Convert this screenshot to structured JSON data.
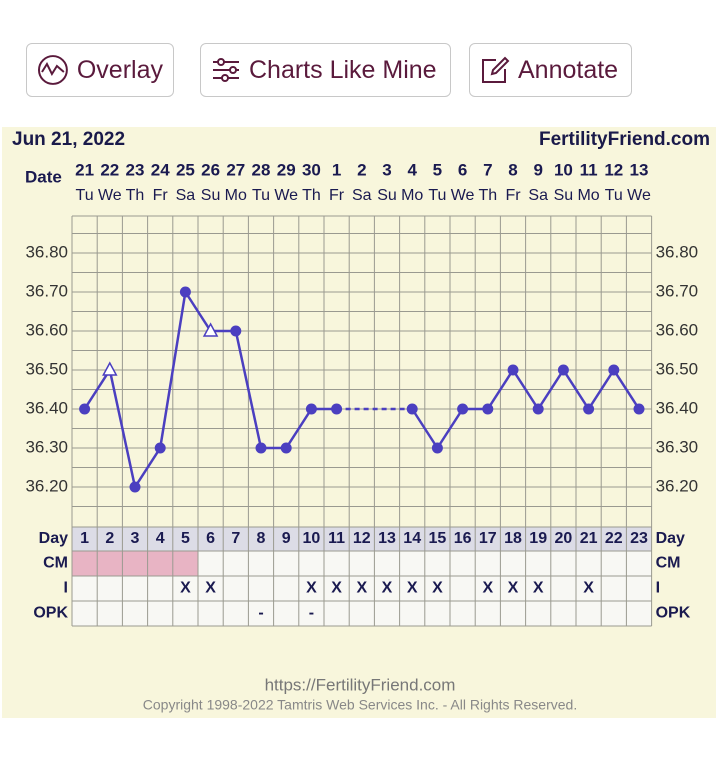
{
  "buttons": [
    "Overlay",
    "Charts Like Mine",
    "Annotate"
  ],
  "header": {
    "date": "Jun 21, 2022",
    "site": "FertilityFriend.com",
    "date_label": "Date"
  },
  "chart_data": {
    "type": "line",
    "categories": [
      "21",
      "22",
      "23",
      "24",
      "25",
      "26",
      "27",
      "28",
      "29",
      "30",
      "1",
      "2",
      "3",
      "4",
      "5",
      "6",
      "7",
      "8",
      "9",
      "10",
      "11",
      "12",
      "13"
    ],
    "weekdays": [
      "Tu",
      "We",
      "Th",
      "Fr",
      "Sa",
      "Su",
      "Mo",
      "Tu",
      "We",
      "Th",
      "Fr",
      "Sa",
      "Su",
      "Mo",
      "Tu",
      "We",
      "Th",
      "Fr",
      "Sa",
      "Su",
      "Mo",
      "Tu",
      "We"
    ],
    "series": [
      {
        "name": "Temperature",
        "color": "#4b3fc0",
        "values": [
          36.4,
          36.5,
          36.2,
          36.3,
          36.7,
          36.6,
          36.6,
          36.3,
          36.3,
          36.4,
          36.4,
          null,
          null,
          36.4,
          36.3,
          36.4,
          36.4,
          36.5,
          36.4,
          36.5,
          36.4,
          36.5,
          36.4
        ],
        "markers": [
          "circle",
          "triangle",
          "circle",
          "circle",
          "circle",
          "triangle",
          "circle",
          "circle",
          "circle",
          "circle",
          "circle",
          null,
          null,
          "circle",
          "circle",
          "circle",
          "circle",
          "circle",
          "circle",
          "circle",
          "circle",
          "circle",
          "circle"
        ],
        "gap_line": "dashed"
      }
    ],
    "ylim": [
      36.1,
      36.9
    ],
    "yticks": [
      {
        "value": 36.2,
        "label": "36.20"
      },
      {
        "value": 36.3,
        "label": "36.30"
      },
      {
        "value": 36.4,
        "label": "36.40"
      },
      {
        "value": 36.5,
        "label": "36.50"
      },
      {
        "value": 36.6,
        "label": "36.60"
      },
      {
        "value": 36.7,
        "label": "36.70"
      },
      {
        "value": 36.8,
        "label": "36.80"
      }
    ],
    "grid": true
  },
  "table": {
    "day": {
      "label": "Day",
      "cells": [
        1,
        2,
        3,
        4,
        5,
        6,
        7,
        8,
        9,
        10,
        11,
        12,
        13,
        14,
        15,
        16,
        17,
        18,
        19,
        20,
        21,
        22,
        23
      ]
    },
    "cm": {
      "label": "CM",
      "highlighted_days": [
        1,
        2,
        3,
        4,
        5
      ],
      "color": "#e8b4c4"
    },
    "i": {
      "label": "I",
      "cells": [
        null,
        null,
        null,
        null,
        "X",
        "X",
        null,
        null,
        null,
        "X",
        "X",
        "X",
        "X",
        "X",
        "X",
        null,
        "X",
        "X",
        "X",
        null,
        "X",
        null,
        null
      ]
    },
    "opk": {
      "label": "OPK",
      "cells": [
        null,
        null,
        null,
        null,
        null,
        null,
        null,
        "-",
        null,
        "-",
        null,
        null,
        null,
        null,
        null,
        null,
        null,
        null,
        null,
        null,
        null,
        null,
        null
      ]
    }
  },
  "footer": {
    "url": "https://FertilityFriend.com",
    "copyright": "Copyright 1998-2022 Tamtris Web Services Inc. - All Rights Reserved."
  }
}
